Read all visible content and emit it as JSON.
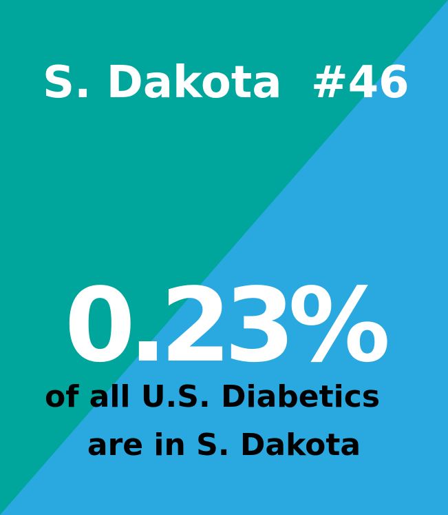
{
  "header": {
    "state": "S. Dakota",
    "rank": "#46"
  },
  "stat": {
    "value": "0.23%",
    "caption_line1": "of all U.S. Diabetics",
    "caption_line2": "are in S. Dakota"
  },
  "colors": {
    "teal": "#00a59c",
    "blue": "#29a9e0",
    "text_light": "#ffffff",
    "text_dark": "#000000"
  }
}
